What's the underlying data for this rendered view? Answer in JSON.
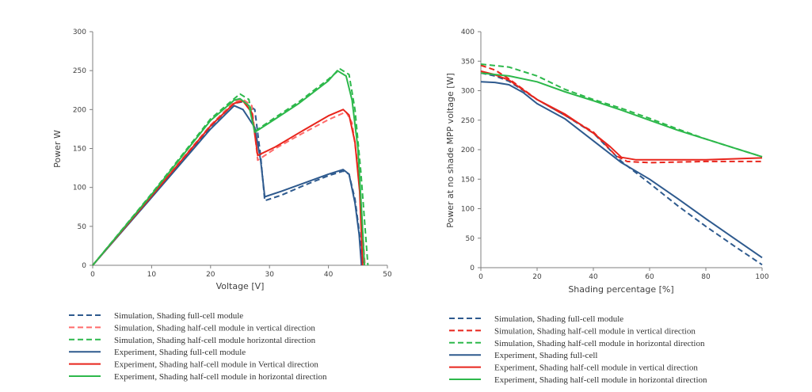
{
  "chart_data": [
    {
      "type": "line",
      "title": "",
      "xlabel": "Voltage [V]",
      "ylabel": "Power W",
      "xlim": [
        0,
        50
      ],
      "ylim": [
        0,
        300
      ],
      "xticks": [
        "0",
        "10",
        "20",
        "30",
        "40",
        "50"
      ],
      "yticks": [
        "0",
        "50",
        "100",
        "150",
        "200",
        "250",
        "300"
      ],
      "grid": false,
      "legend_position": "bottom",
      "series": [
        {
          "name": "Simulation, Shading full-cell module",
          "color": "#2e5a8e",
          "style": "dashed",
          "points": [
            [
              0,
              0
            ],
            [
              10,
              88
            ],
            [
              20,
              178
            ],
            [
              24,
              208
            ],
            [
              25.5,
              210
            ],
            [
              27.5,
              200
            ],
            [
              28.5,
              140
            ],
            [
              29.2,
              83
            ],
            [
              32,
              90
            ],
            [
              36,
              103
            ],
            [
              40,
              115
            ],
            [
              42.5,
              121
            ],
            [
              43.5,
              117
            ],
            [
              44.5,
              85
            ],
            [
              45.2,
              45
            ],
            [
              45.9,
              0
            ]
          ]
        },
        {
          "name": "Simulation, Shading half-cell module in vertical direction",
          "color": "#ff6a6a",
          "style": "dashed",
          "points": [
            [
              0,
              0
            ],
            [
              10,
              90
            ],
            [
              20,
              180
            ],
            [
              24,
              210
            ],
            [
              25.5,
              213
            ],
            [
              27,
              205
            ],
            [
              28,
              135
            ],
            [
              31,
              150
            ],
            [
              35,
              167
            ],
            [
              40,
              187
            ],
            [
              43,
              197
            ],
            [
              44,
              183
            ],
            [
              45,
              128
            ],
            [
              45.7,
              55
            ],
            [
              46.2,
              0
            ]
          ]
        },
        {
          "name": "Simulation, Shading half-cell module horizontal direction",
          "color": "#2db84b",
          "style": "dashed",
          "points": [
            [
              0,
              0
            ],
            [
              10,
              92
            ],
            [
              20,
              188
            ],
            [
              24,
              214
            ],
            [
              25,
              220
            ],
            [
              26.5,
              213
            ],
            [
              27.5,
              172
            ],
            [
              31,
              190
            ],
            [
              35,
              210
            ],
            [
              40,
              239
            ],
            [
              42,
              252
            ],
            [
              43.5,
              245
            ],
            [
              44.5,
              200
            ],
            [
              45.5,
              120
            ],
            [
              46.2,
              50
            ],
            [
              46.7,
              0
            ]
          ]
        },
        {
          "name": "Experiment, Shading full-cell module",
          "color": "#2e5a8e",
          "style": "solid",
          "points": [
            [
              0,
              0
            ],
            [
              10,
              87
            ],
            [
              20,
              175
            ],
            [
              24,
              205
            ],
            [
              25.5,
              200
            ],
            [
              27.5,
              177
            ],
            [
              28.5,
              135
            ],
            [
              29.2,
              88
            ],
            [
              32,
              95
            ],
            [
              36,
              106
            ],
            [
              40,
              117
            ],
            [
              42.5,
              123
            ],
            [
              43.5,
              117
            ],
            [
              44.5,
              80
            ],
            [
              45.2,
              40
            ],
            [
              45.6,
              0
            ]
          ]
        },
        {
          "name": "Experiment, Shading half-cell module in Vertical direction",
          "color": "#e8251c",
          "style": "solid",
          "points": [
            [
              0,
              0
            ],
            [
              10,
              89
            ],
            [
              20,
              179
            ],
            [
              24,
              208
            ],
            [
              25.5,
              211
            ],
            [
              27,
              196
            ],
            [
              28,
              141
            ],
            [
              31,
              152
            ],
            [
              35,
              170
            ],
            [
              40,
              192
            ],
            [
              42.5,
              200
            ],
            [
              43.5,
              193
            ],
            [
              44.5,
              158
            ],
            [
              45.3,
              95
            ],
            [
              45.8,
              0
            ]
          ]
        },
        {
          "name": "Experiment, Shading half-cell module in horizontal direction",
          "color": "#2db84b",
          "style": "solid",
          "points": [
            [
              0,
              0
            ],
            [
              10,
              91
            ],
            [
              20,
              186
            ],
            [
              24,
              212
            ],
            [
              25,
              214
            ],
            [
              26.5,
              205
            ],
            [
              27.5,
              171
            ],
            [
              31,
              188
            ],
            [
              35,
              208
            ],
            [
              40,
              237
            ],
            [
              41.5,
              250
            ],
            [
              43,
              243
            ],
            [
              44,
              212
            ],
            [
              45,
              150
            ],
            [
              45.7,
              60
            ],
            [
              46.1,
              0
            ]
          ]
        }
      ]
    },
    {
      "type": "line",
      "title": "",
      "xlabel": "Shading percentage [%]",
      "ylabel": "Power at no shade MPP voltage [W]",
      "xlim": [
        0,
        100
      ],
      "ylim": [
        0,
        400
      ],
      "xticks": [
        "0",
        "20",
        "40",
        "60",
        "80",
        "100"
      ],
      "yticks": [
        "0",
        "50",
        "100",
        "150",
        "200",
        "250",
        "300",
        "350",
        "400"
      ],
      "grid": false,
      "legend_position": "bottom",
      "series": [
        {
          "name": "Simulation, Shading full-cell module",
          "color": "#2e5a8e",
          "style": "dashed",
          "points": [
            [
              0,
              330
            ],
            [
              5,
              325
            ],
            [
              10,
              316
            ],
            [
              20,
              285
            ],
            [
              30,
              258
            ],
            [
              40,
              228
            ],
            [
              50,
              180
            ],
            [
              60,
              143
            ],
            [
              70,
              105
            ],
            [
              80,
              70
            ],
            [
              90,
              37
            ],
            [
              100,
              5
            ]
          ]
        },
        {
          "name": "Simulation, Shading half-cell module in vertical direction",
          "color": "#e8251c",
          "style": "dashed",
          "points": [
            [
              0,
              343
            ],
            [
              5,
              335
            ],
            [
              10,
              320
            ],
            [
              20,
              285
            ],
            [
              30,
              258
            ],
            [
              40,
              230
            ],
            [
              48,
              190
            ],
            [
              52,
              180
            ],
            [
              60,
              178
            ],
            [
              80,
              180
            ],
            [
              100,
              180
            ]
          ]
        },
        {
          "name": "Simulation, Shading half-cell module in horizontal direction",
          "color": "#2db84b",
          "style": "dashed",
          "points": [
            [
              0,
              345
            ],
            [
              10,
              340
            ],
            [
              20,
              325
            ],
            [
              30,
              302
            ],
            [
              40,
              285
            ],
            [
              50,
              270
            ],
            [
              60,
              253
            ],
            [
              70,
              235
            ],
            [
              80,
              218
            ],
            [
              90,
              203
            ],
            [
              100,
              188
            ]
          ]
        },
        {
          "name": "Experiment, Shading full-cell",
          "color": "#2e5a8e",
          "style": "solid",
          "points": [
            [
              0,
              315
            ],
            [
              5,
              314
            ],
            [
              10,
              310
            ],
            [
              15,
              297
            ],
            [
              20,
              278
            ],
            [
              30,
              252
            ],
            [
              40,
              215
            ],
            [
              50,
              178
            ],
            [
              60,
              150
            ],
            [
              70,
              117
            ],
            [
              80,
              83
            ],
            [
              90,
              50
            ],
            [
              100,
              17
            ]
          ]
        },
        {
          "name": "Experiment, Shading half-cell module in vertical direction",
          "color": "#e8251c",
          "style": "solid",
          "points": [
            [
              0,
              333
            ],
            [
              5,
              327
            ],
            [
              10,
              318
            ],
            [
              20,
              285
            ],
            [
              30,
              260
            ],
            [
              40,
              228
            ],
            [
              46,
              205
            ],
            [
              50,
              187
            ],
            [
              55,
              183
            ],
            [
              60,
              183
            ],
            [
              80,
              183
            ],
            [
              100,
              186
            ]
          ]
        },
        {
          "name": "Experiment, Shading half-cell module in horizontal direction",
          "color": "#2db84b",
          "style": "solid",
          "points": [
            [
              0,
              330
            ],
            [
              10,
              325
            ],
            [
              20,
              315
            ],
            [
              30,
              298
            ],
            [
              40,
              283
            ],
            [
              50,
              267
            ],
            [
              60,
              250
            ],
            [
              70,
              233
            ],
            [
              80,
              218
            ],
            [
              90,
              203
            ],
            [
              100,
              188
            ]
          ]
        }
      ]
    }
  ]
}
